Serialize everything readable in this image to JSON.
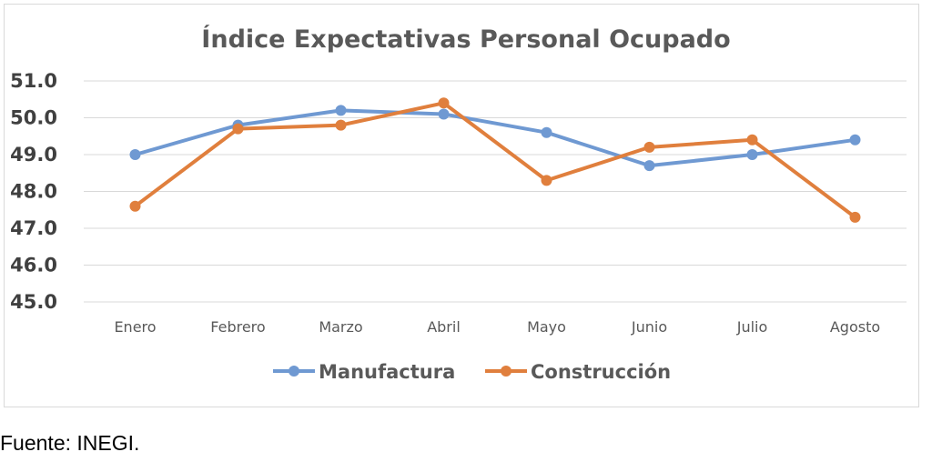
{
  "chart_data": {
    "type": "line",
    "title": "Índice Expectativas Personal Ocupado",
    "categories": [
      "Enero",
      "Febrero",
      "Marzo",
      "Abril",
      "Mayo",
      "Junio",
      "Julio",
      "Agosto"
    ],
    "ylim": [
      45.0,
      51.0
    ],
    "yticks": [
      "45.0",
      "46.0",
      "47.0",
      "48.0",
      "49.0",
      "50.0",
      "51.0"
    ],
    "grid": true,
    "legend_position": "bottom",
    "series": [
      {
        "name": "Manufactura",
        "color": "#6f99d2",
        "values": [
          49.0,
          49.8,
          50.2,
          50.1,
          49.6,
          48.7,
          49.0,
          49.4
        ]
      },
      {
        "name": "Construcción",
        "color": "#e07f3d",
        "values": [
          47.6,
          49.7,
          49.8,
          50.4,
          48.3,
          49.2,
          49.4,
          47.3
        ]
      }
    ]
  },
  "source": "Fuente: INEGI."
}
